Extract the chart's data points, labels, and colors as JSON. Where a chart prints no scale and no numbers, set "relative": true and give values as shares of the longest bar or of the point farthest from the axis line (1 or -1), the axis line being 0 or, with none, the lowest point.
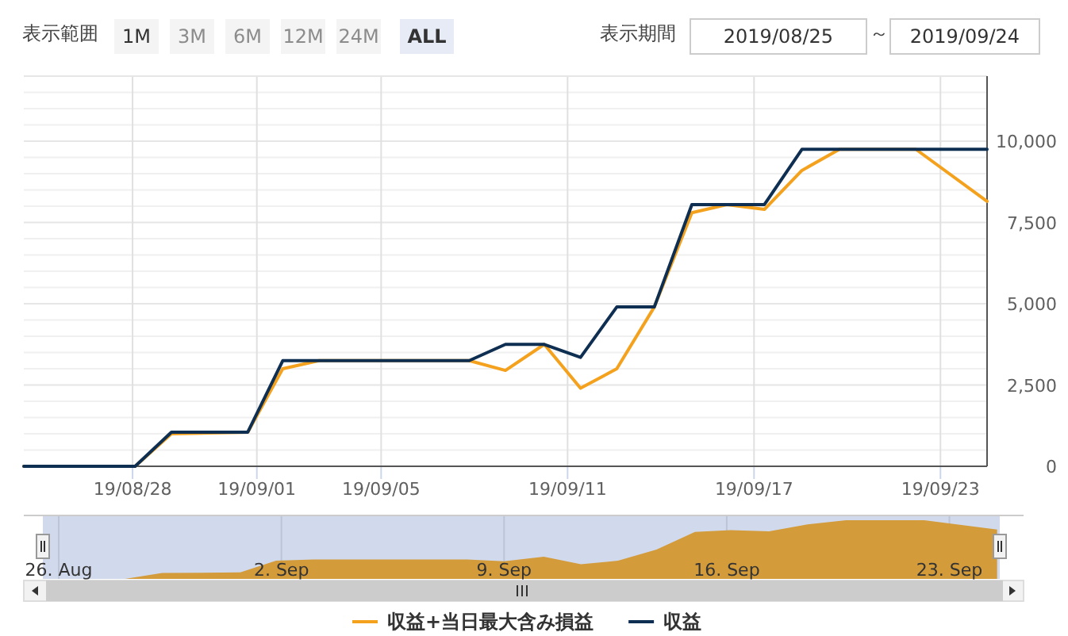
{
  "chart_data": [
    {
      "type": "line",
      "annotations": [
        "表示範囲",
        "1M",
        "3M",
        "6M",
        "12M",
        "24M",
        "ALL",
        "表示期間",
        "2019/08/25",
        "～",
        "2019/09/24"
      ],
      "xlim": [
        "2019-08-24T12:00",
        "2019-09-24T12:00"
      ],
      "xticks": [
        {
          "value": "2019-08-28",
          "label": "19/08/28"
        },
        {
          "value": "2019-09-01",
          "label": "19/09/01"
        },
        {
          "value": "2019-09-05",
          "label": "19/09/05"
        },
        {
          "value": "2019-09-11",
          "label": "19/09/11"
        },
        {
          "value": "2019-09-17",
          "label": "19/09/17"
        },
        {
          "value": "2019-09-23",
          "label": "19/09/23"
        }
      ],
      "ylim": [
        0,
        12000
      ],
      "yticks": [
        0,
        {
          "value": 500,
          "label": null
        },
        {
          "value": 1000,
          "label": null
        },
        {
          "value": 1500,
          "label": null
        },
        {
          "value": 2000,
          "label": null
        },
        {
          "value": 2500,
          "label": "2,500"
        },
        {
          "value": 3000,
          "label": null
        },
        {
          "value": 3500,
          "label": null
        },
        {
          "value": 4000,
          "label": null
        },
        {
          "value": 4500,
          "label": null
        },
        {
          "value": 5000,
          "label": "5,000"
        },
        {
          "value": 5500,
          "label": null
        },
        {
          "value": 6000,
          "label": null
        },
        {
          "value": 6500,
          "label": null
        },
        {
          "value": 7000,
          "label": null
        },
        {
          "value": 7500,
          "label": "7,500"
        },
        {
          "value": 8000,
          "label": null
        },
        {
          "value": 8500,
          "label": null
        },
        {
          "value": 9000,
          "label": null
        },
        {
          "value": 9500,
          "label": null
        },
        {
          "value": 10000,
          "label": "10,000"
        },
        {
          "value": 10500,
          "label": null
        },
        {
          "value": 11000,
          "label": null
        },
        {
          "value": 11500,
          "label": null
        },
        {
          "value": 12000,
          "label": null
        }
      ],
      "grid": true,
      "legend": "bottom",
      "series": [
        {
          "name": "収益+当日最大含み損益",
          "color": "#f4a21e",
          "x": [
            "2019-08-24T12:00",
            "2019-08-28T02:00",
            "2019-08-29T06:00",
            "2019-08-31T17:00",
            "2019-09-01T20:00",
            "2019-09-03T00:00",
            "2019-09-07T20:00",
            "2019-09-09T00:00",
            "2019-09-10T06:00",
            "2019-09-11T10:00",
            "2019-09-12T14:00",
            "2019-09-13T19:00",
            "2019-09-15T00:00",
            "2019-09-16T03:00",
            "2019-09-17T08:00",
            "2019-09-18T13:00",
            "2019-09-19T18:00",
            "2019-09-22T05:00",
            "2019-09-24T12:00"
          ],
          "values": [
            0,
            0,
            1000,
            1050,
            3000,
            3250,
            3250,
            2950,
            3750,
            2400,
            3000,
            4900,
            7800,
            8050,
            7900,
            9100,
            9750,
            9750,
            8150
          ]
        },
        {
          "name": "収益",
          "color": "#0e2f52",
          "x": [
            "2019-08-24T12:00",
            "2019-08-28T02:00",
            "2019-08-29T06:00",
            "2019-08-31T17:00",
            "2019-09-01T20:00",
            "2019-09-07T20:00",
            "2019-09-09T00:00",
            "2019-09-10T06:00",
            "2019-09-11T10:00",
            "2019-09-12T14:00",
            "2019-09-13T19:00",
            "2019-09-15T00:00",
            "2019-09-17T08:00",
            "2019-09-18T13:00",
            "2019-09-24T12:00"
          ],
          "values": [
            0,
            0,
            1050,
            1050,
            3250,
            3250,
            3750,
            3750,
            3350,
            4900,
            4900,
            8050,
            8050,
            9750,
            9750
          ]
        }
      ]
    },
    {
      "type": "area",
      "relative": true,
      "color": "#d39b3a",
      "grid": "x",
      "xlim": [
        "2019-08-25T12:00",
        "2019-09-24T14:00"
      ],
      "xticks": [
        {
          "value": "2019-08-26",
          "label": "26. Aug"
        },
        {
          "value": "2019-09-02",
          "label": "2. Sep"
        },
        {
          "value": "2019-09-09",
          "label": "9. Sep"
        },
        {
          "value": "2019-09-16",
          "label": "16. Sep"
        },
        {
          "value": "2019-09-23",
          "label": "23. Sep"
        }
      ],
      "x": [
        "2019-08-25T12:00",
        "2019-08-28T02:00",
        "2019-08-29T06:00",
        "2019-08-31T17:00",
        "2019-09-01T20:00",
        "2019-09-03T00:00",
        "2019-09-07T20:00",
        "2019-09-09T00:00",
        "2019-09-10T06:00",
        "2019-09-11T10:00",
        "2019-09-12T14:00",
        "2019-09-13T19:00",
        "2019-09-15T00:00",
        "2019-09-16T03:00",
        "2019-09-17T08:00",
        "2019-09-18T13:00",
        "2019-09-19T18:00",
        "2019-09-22T05:00",
        "2019-09-24T12:00"
      ],
      "values": [
        0,
        0,
        0.1,
        0.11,
        0.31,
        0.33,
        0.33,
        0.3,
        0.38,
        0.25,
        0.31,
        0.5,
        0.8,
        0.83,
        0.81,
        0.93,
        1,
        1,
        0.84
      ]
    }
  ]
}
